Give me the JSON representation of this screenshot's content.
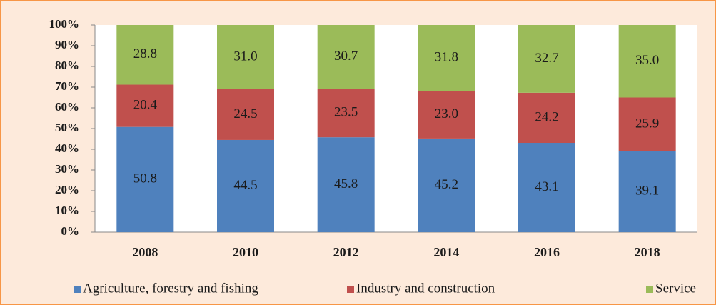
{
  "chart_data": {
    "type": "stacked_bar",
    "categories": [
      "2008",
      "2010",
      "2012",
      "2014",
      "2016",
      "2018"
    ],
    "series": [
      {
        "name": "Agriculture, forestry and fishing",
        "color": "#4f81bd",
        "values": [
          50.8,
          44.5,
          45.8,
          45.2,
          43.1,
          39.1
        ],
        "value_labels": [
          "50.8",
          "44.5",
          "45.8",
          "45.2",
          "43.1",
          "39.1"
        ]
      },
      {
        "name": "Industry and construction",
        "color": "#c0504d",
        "values": [
          20.4,
          24.5,
          23.5,
          23.0,
          24.2,
          25.9
        ],
        "value_labels": [
          "20.4",
          "24.5",
          "23.5",
          "23.0",
          "24.2",
          "25.9"
        ]
      },
      {
        "name": "Service",
        "color": "#9bbb59",
        "values": [
          28.8,
          31.0,
          30.7,
          31.8,
          32.7,
          35.0
        ],
        "value_labels": [
          "28.8",
          "31.0",
          "30.7",
          "31.8",
          "32.7",
          "35.0"
        ]
      }
    ],
    "ylim": [
      0,
      100
    ],
    "yticks": [
      {
        "value": 0,
        "label": "0%"
      },
      {
        "value": 10,
        "label": "10%"
      },
      {
        "value": 20,
        "label": "20%"
      },
      {
        "value": 30,
        "label": "30%"
      },
      {
        "value": 40,
        "label": "40%"
      },
      {
        "value": 50,
        "label": "50%"
      },
      {
        "value": 60,
        "label": "60%"
      },
      {
        "value": 70,
        "label": "70%"
      },
      {
        "value": 80,
        "label": "80%"
      },
      {
        "value": 90,
        "label": "90%"
      },
      {
        "value": 100,
        "label": "100%"
      }
    ],
    "legend": "bottom"
  }
}
